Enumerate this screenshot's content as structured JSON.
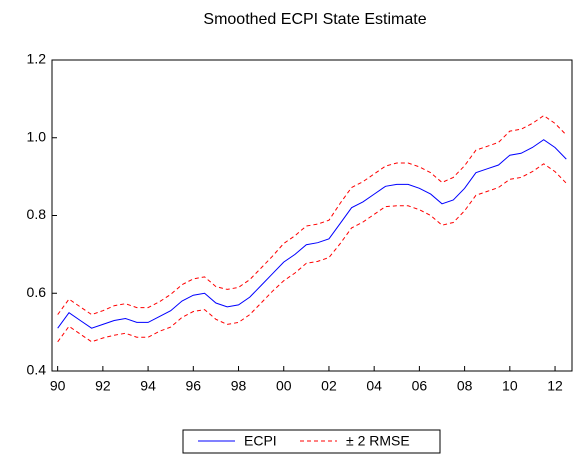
{
  "chart_data": {
    "type": "line",
    "title": "Smoothed ECPI State Estimate",
    "categories": [
      "90",
      null,
      null,
      null,
      "92",
      null,
      null,
      null,
      "94",
      null,
      null,
      null,
      "96",
      null,
      null,
      null,
      "98",
      null,
      null,
      null,
      "00",
      null,
      null,
      null,
      "02",
      null,
      null,
      null,
      "04",
      null,
      null,
      null,
      "06",
      null,
      null,
      null,
      "08",
      null,
      null,
      null,
      "10",
      null,
      null,
      null,
      "12",
      null
    ],
    "series": [
      {
        "name": "ECPI",
        "color": "#0000ff",
        "dashed": false,
        "values": [
          0.51,
          0.55,
          0.53,
          0.51,
          0.52,
          0.53,
          0.535,
          0.525,
          0.525,
          0.54,
          0.555,
          0.58,
          0.595,
          0.6,
          0.575,
          0.565,
          0.57,
          0.59,
          0.62,
          0.65,
          0.68,
          0.7,
          0.725,
          0.73,
          0.74,
          0.78,
          0.82,
          0.835,
          0.855,
          0.875,
          0.88,
          0.88,
          0.87,
          0.855,
          0.83,
          0.84,
          0.87,
          0.91,
          0.92,
          0.93,
          0.955,
          0.96,
          0.975,
          0.995,
          0.975,
          0.945
        ]
      },
      {
        "name": "± 2 RMSE",
        "color": "#ff0000",
        "dashed": true,
        "upper": [
          0.545,
          0.585,
          0.565,
          0.545,
          0.555,
          0.568,
          0.573,
          0.563,
          0.563,
          0.578,
          0.597,
          0.622,
          0.637,
          0.642,
          0.617,
          0.61,
          0.615,
          0.635,
          0.665,
          0.695,
          0.728,
          0.748,
          0.773,
          0.778,
          0.788,
          0.832,
          0.872,
          0.887,
          0.907,
          0.927,
          0.935,
          0.935,
          0.925,
          0.91,
          0.885,
          0.898,
          0.928,
          0.968,
          0.978,
          0.988,
          1.017,
          1.022,
          1.037,
          1.057,
          1.037,
          1.007
        ],
        "lower": [
          0.475,
          0.515,
          0.495,
          0.475,
          0.485,
          0.492,
          0.497,
          0.487,
          0.487,
          0.502,
          0.513,
          0.538,
          0.553,
          0.558,
          0.533,
          0.52,
          0.525,
          0.545,
          0.575,
          0.605,
          0.632,
          0.652,
          0.677,
          0.682,
          0.692,
          0.728,
          0.768,
          0.783,
          0.803,
          0.823,
          0.825,
          0.825,
          0.815,
          0.8,
          0.775,
          0.782,
          0.812,
          0.852,
          0.862,
          0.872,
          0.893,
          0.898,
          0.913,
          0.933,
          0.913,
          0.883
        ]
      }
    ],
    "ylim": [
      0.4,
      1.2
    ],
    "yticks": [
      0.4,
      0.6,
      0.8,
      {
        "value": 1,
        "label": "1.0"
      },
      1.2
    ]
  }
}
